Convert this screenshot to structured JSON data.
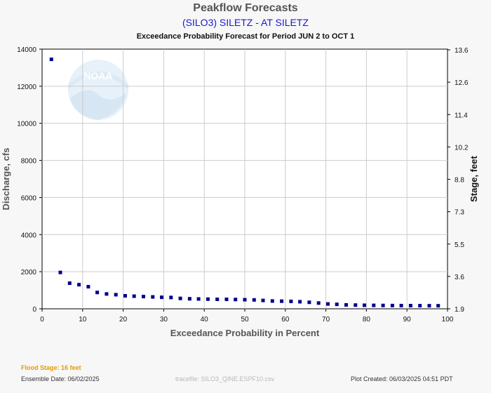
{
  "header": {
    "title": "Peakflow Forecasts",
    "station": "(SILO3) SILETZ - AT SILETZ",
    "subtitle": "Exceedance Probability Forecast for Period JUN 2 to OCT 1"
  },
  "footer": {
    "flood_stage": "Flood Stage: 16 feet",
    "ensemble_date": "Ensemble Date: 06/02/2025",
    "tracefile": "tracefile: SILO3_QINE.ESPF10.csv",
    "plot_created": "Plot Created: 06/03/2025 04:51 PDT"
  },
  "watermark": {
    "text": "NOAA",
    "icon": "noaa-logo"
  },
  "colors": {
    "points": "#00008b",
    "grid": "#cccccc",
    "background": "#ffffff"
  },
  "chart_data": {
    "type": "scatter",
    "xlabel": "Exceedance Probability in Percent",
    "ylabel": "Discharge, cfs",
    "y2label": "Stage, feet",
    "xlim": [
      0,
      100
    ],
    "ylim": [
      0,
      14000
    ],
    "grid": true,
    "x_ticks": [
      "0",
      "10",
      "20",
      "30",
      "40",
      "50",
      "60",
      "70",
      "80",
      "90",
      "100"
    ],
    "y_ticks": [
      "0",
      "2000",
      "4000",
      "6000",
      "8000",
      "10000",
      "12000",
      "14000"
    ],
    "y2_ticks": [
      "1.9",
      "3.6",
      "5.5",
      "7.3",
      "8.8",
      "10.2",
      "11.4",
      "12.6",
      "13.6"
    ],
    "series": [
      {
        "x": [
          2.3,
          4.5,
          6.8,
          9.1,
          11.4,
          13.6,
          15.9,
          18.2,
          20.5,
          22.7,
          25.0,
          27.3,
          29.5,
          31.8,
          34.1,
          36.4,
          38.6,
          40.9,
          43.2,
          45.5,
          47.7,
          50.0,
          52.3,
          54.5,
          56.8,
          59.1,
          61.4,
          63.6,
          65.9,
          68.2,
          70.5,
          72.7,
          75.0,
          77.3,
          79.5,
          81.8,
          84.1,
          86.4,
          88.6,
          90.9,
          93.2,
          95.5,
          97.7
        ],
        "y": [
          13450,
          1960,
          1380,
          1300,
          1190,
          880,
          800,
          760,
          700,
          680,
          660,
          640,
          620,
          610,
          560,
          540,
          530,
          520,
          510,
          510,
          500,
          490,
          480,
          450,
          420,
          410,
          400,
          380,
          350,
          310,
          260,
          240,
          210,
          200,
          190,
          185,
          180,
          175,
          172,
          170,
          168,
          166,
          165
        ]
      }
    ]
  }
}
